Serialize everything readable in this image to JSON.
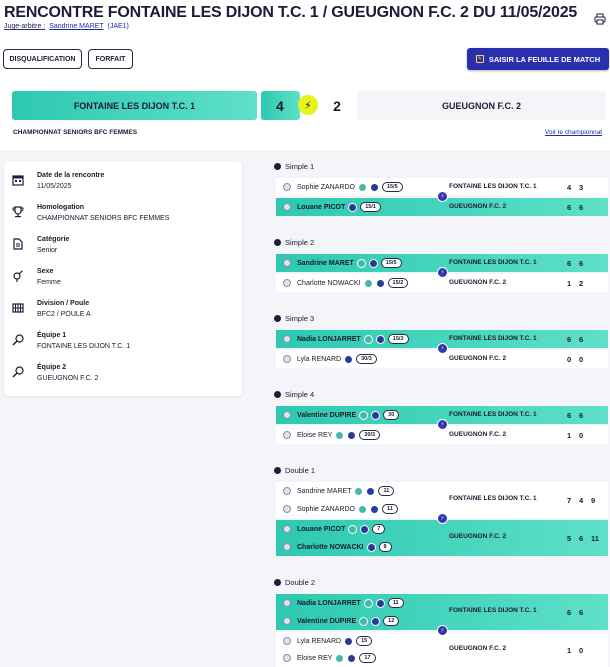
{
  "page": {
    "title": "RENCONTRE FONTAINE LES DIJON T.C. 1 / GUEUGNON F.C. 2 DU 11/05/2025",
    "juge_label": "Juge-arbitre :",
    "juge_name": "Sandrine MARET",
    "juge_code": "(JAE1)"
  },
  "actions": {
    "disqualification": "DISQUALIFICATION",
    "forfait": "FORFAIT",
    "saisir": "SAISIR LA FEUILLE DE MATCH"
  },
  "score": {
    "home_team": "FONTAINE LES DIJON T.C. 1",
    "home_score": "4",
    "away_score": "2",
    "away_team": "GUEUGNON F.C. 2",
    "championship": "CHAMPIONNAT SENIORS BFC FEMMES",
    "voir": "Voir le championnat"
  },
  "info": [
    {
      "icon": "calendar-icon",
      "label": "Date de la rencontre",
      "value": "11/05/2025"
    },
    {
      "icon": "trophy-icon",
      "label": "Homologation",
      "value": "CHAMPIONNAT SENIORS BFC FEMMES"
    },
    {
      "icon": "document-icon",
      "label": "Catégorie",
      "value": "Senior"
    },
    {
      "icon": "gender-icon",
      "label": "Sexe",
      "value": "Femme"
    },
    {
      "icon": "grid-icon",
      "label": "Division / Poule",
      "value": "BFC2 / POULE A"
    },
    {
      "icon": "racket-icon",
      "label": "Équipe 1",
      "value": "FONTAINE LES DIJON T.C. 1"
    },
    {
      "icon": "racket-icon",
      "label": "Équipe 2",
      "value": "GUEUGNON F.C. 2"
    }
  ],
  "matches": [
    {
      "title": "Simple 1",
      "home": {
        "players": [
          {
            "name": "Sophie ZANARDO",
            "rank": "15/5"
          }
        ],
        "club": "FONTAINE LES DIJON T.C. 1",
        "scores": [
          "4",
          "3"
        ],
        "win": false
      },
      "away": {
        "players": [
          {
            "name": "Louane PICOT",
            "rank": "15/1"
          }
        ],
        "club": "GUEUGNON F.C. 2",
        "scores": [
          "6",
          "6"
        ],
        "win": true
      }
    },
    {
      "title": "Simple 2",
      "home": {
        "players": [
          {
            "name": "Sandrine MARET",
            "rank": "15/5"
          }
        ],
        "club": "FONTAINE LES DIJON T.C. 1",
        "scores": [
          "6",
          "6"
        ],
        "win": true
      },
      "away": {
        "players": [
          {
            "name": "Charlotte NOWACKI",
            "rank": "15/2"
          }
        ],
        "club": "GUEUGNON F.C. 2",
        "scores": [
          "1",
          "2"
        ],
        "win": false
      }
    },
    {
      "title": "Simple 3",
      "home": {
        "players": [
          {
            "name": "Nadia LONJARRET",
            "rank": "15/3"
          }
        ],
        "club": "FONTAINE LES DIJON T.C. 1",
        "scores": [
          "6",
          "6"
        ],
        "win": true
      },
      "away": {
        "players": [
          {
            "name": "Lyla RENARD",
            "rank": "30/3"
          }
        ],
        "club": "GUEUGNON F.C. 2",
        "scores": [
          "0",
          "0"
        ],
        "win": false
      }
    },
    {
      "title": "Simple 4",
      "home": {
        "players": [
          {
            "name": "Valentine DUPIRE",
            "rank": "30"
          }
        ],
        "club": "FONTAINE LES DIJON T.C. 1",
        "scores": [
          "6",
          "6"
        ],
        "win": true
      },
      "away": {
        "players": [
          {
            "name": "Eloise REY",
            "rank": "30/3"
          }
        ],
        "club": "GUEUGNON F.C. 2",
        "scores": [
          "1",
          "0"
        ],
        "win": false
      }
    },
    {
      "title": "Double 1",
      "home": {
        "players": [
          {
            "name": "Sandrine MARET",
            "rank": "11"
          },
          {
            "name": "Sophie ZANARDO",
            "rank": "11"
          }
        ],
        "club": "FONTAINE LES DIJON T.C. 1",
        "scores": [
          "7",
          "4",
          "9"
        ],
        "win": false
      },
      "away": {
        "players": [
          {
            "name": "Louane PICOT",
            "rank": "7"
          },
          {
            "name": "Charlotte NOWACKI",
            "rank": "8"
          }
        ],
        "club": "GUEUGNON F.C. 2",
        "scores": [
          "5",
          "6",
          "11"
        ],
        "win": true
      }
    },
    {
      "title": "Double 2",
      "home": {
        "players": [
          {
            "name": "Nadia LONJARRET",
            "rank": "11"
          },
          {
            "name": "Valentine DUPIRE",
            "rank": "12"
          }
        ],
        "club": "FONTAINE LES DIJON T.C. 1",
        "scores": [
          "6",
          "6"
        ],
        "win": true
      },
      "away": {
        "players": [
          {
            "name": "Lyla RENARD",
            "rank": "15"
          },
          {
            "name": "Eloise REY",
            "rank": "17"
          }
        ],
        "club": "GUEUGNON F.C. 2",
        "scores": [
          "1",
          "0"
        ],
        "win": false
      }
    }
  ],
  "colors": {
    "accent": "#2cc9b0",
    "primary": "#2a2fb0",
    "bolt": "#e8f417"
  }
}
